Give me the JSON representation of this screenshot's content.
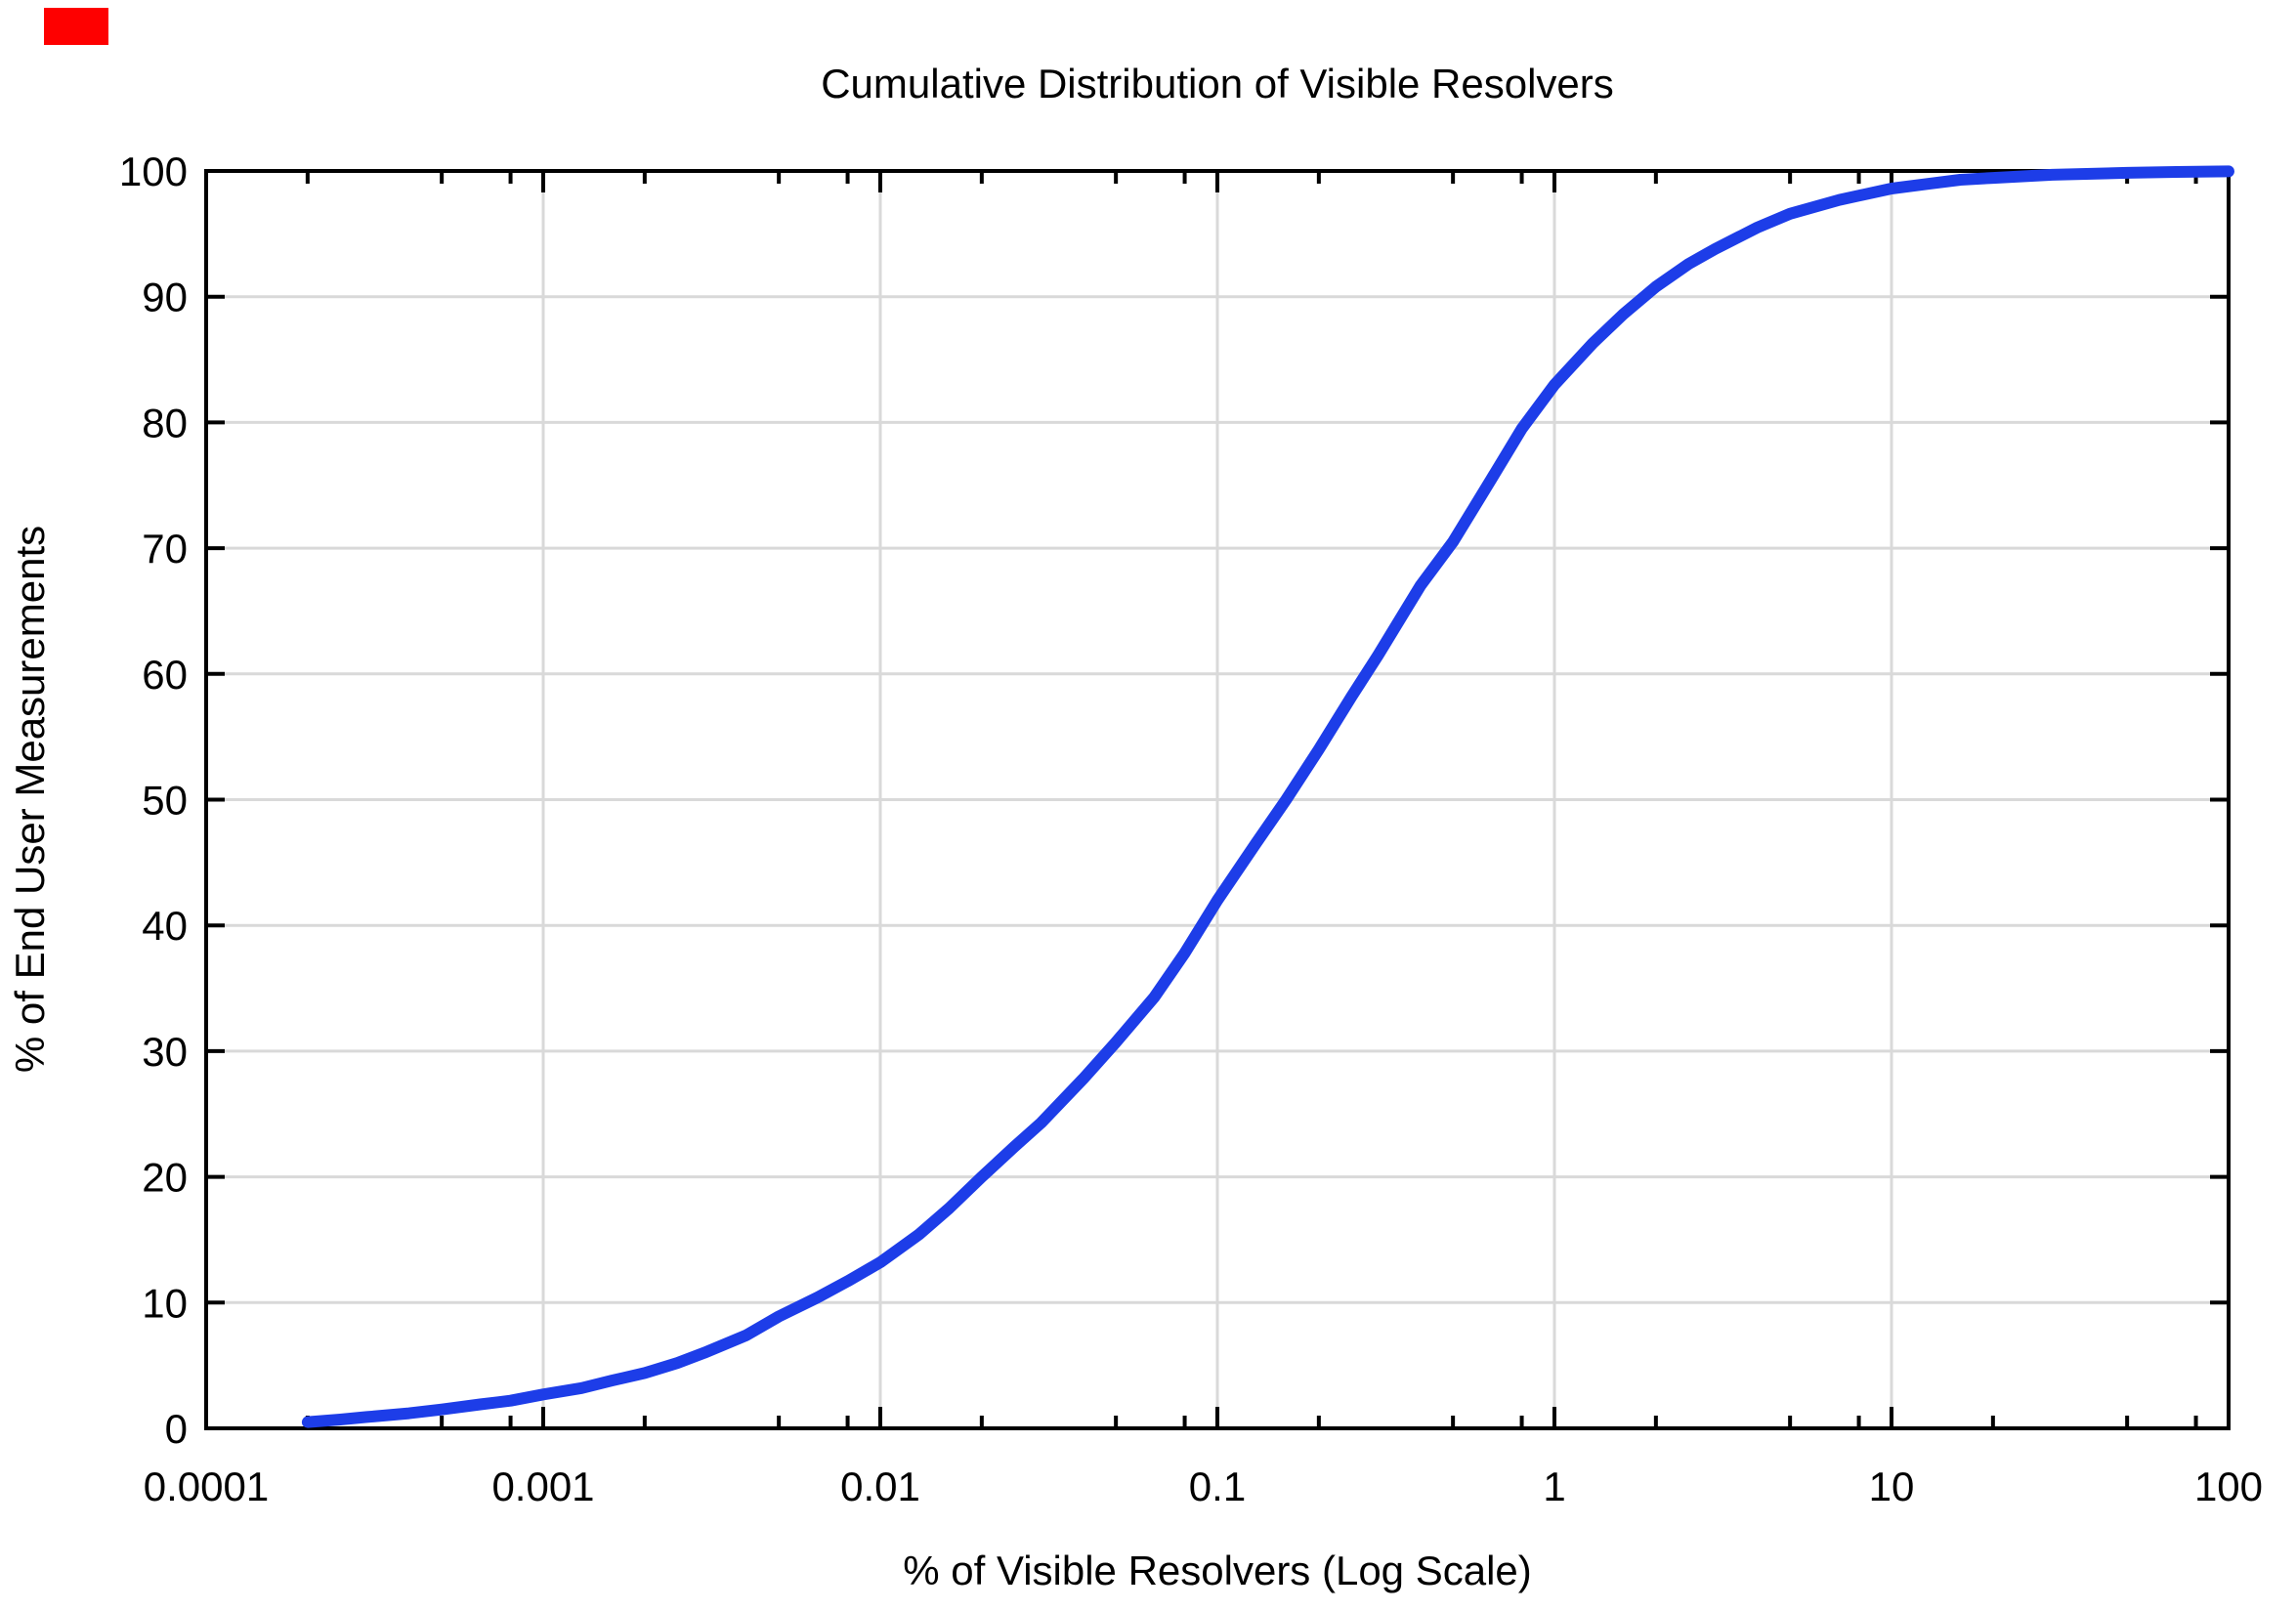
{
  "figure": {
    "background": "#ffffff",
    "red_marker_color": "#fe0000"
  },
  "chart_data": {
    "type": "line",
    "title": "Cumulative Distribution of Visible Resolvers",
    "xlabel": "% of Visible Resolvers (Log Scale)",
    "ylabel": "% of End User Measurements",
    "x_scale": "log",
    "x_range": [
      0.0001,
      100
    ],
    "y_range": [
      0,
      100
    ],
    "x_tick_labels": [
      "0.0001",
      "0.001",
      "0.01",
      "0.1",
      "1",
      "10",
      "100"
    ],
    "x_tick_values": [
      0.0001,
      0.001,
      0.01,
      0.1,
      1,
      10,
      100
    ],
    "x_minor_tick_mantissas": [
      2,
      5,
      8
    ],
    "y_tick_values": [
      0,
      10,
      20,
      30,
      40,
      50,
      60,
      70,
      80,
      90,
      100
    ],
    "grid": true,
    "grid_color": "#d9d9d9",
    "axis_color": "#000000",
    "legend": "none",
    "series": [
      {
        "name": "Cumulative distribution of visible resolvers",
        "color": "#1d3de8",
        "line_width": 12,
        "points": [
          [
            0.0002,
            0.5
          ],
          [
            0.00025,
            0.7
          ],
          [
            0.0003,
            0.9
          ],
          [
            0.0004,
            1.2
          ],
          [
            0.0005,
            1.5
          ],
          [
            0.00065,
            1.9
          ],
          [
            0.0008,
            2.2
          ],
          [
            0.001,
            2.7
          ],
          [
            0.0013,
            3.2
          ],
          [
            0.0016,
            3.8
          ],
          [
            0.002,
            4.4
          ],
          [
            0.0025,
            5.2
          ],
          [
            0.003,
            6.0
          ],
          [
            0.004,
            7.4
          ],
          [
            0.005,
            8.9
          ],
          [
            0.0065,
            10.4
          ],
          [
            0.008,
            11.7
          ],
          [
            0.01,
            13.2
          ],
          [
            0.013,
            15.4
          ],
          [
            0.016,
            17.5
          ],
          [
            0.02,
            20.0
          ],
          [
            0.025,
            22.4
          ],
          [
            0.03,
            24.3
          ],
          [
            0.04,
            27.8
          ],
          [
            0.05,
            30.7
          ],
          [
            0.065,
            34.3
          ],
          [
            0.08,
            37.8
          ],
          [
            0.1,
            42.0
          ],
          [
            0.13,
            46.5
          ],
          [
            0.16,
            50.0
          ],
          [
            0.2,
            54.0
          ],
          [
            0.25,
            58.2
          ],
          [
            0.3,
            61.5
          ],
          [
            0.4,
            67.0
          ],
          [
            0.5,
            70.5
          ],
          [
            0.65,
            75.5
          ],
          [
            0.8,
            79.5
          ],
          [
            1.0,
            83.0
          ],
          [
            1.3,
            86.3
          ],
          [
            1.6,
            88.6
          ],
          [
            2.0,
            90.8
          ],
          [
            2.5,
            92.6
          ],
          [
            3.0,
            93.8
          ],
          [
            4.0,
            95.5
          ],
          [
            5.0,
            96.6
          ],
          [
            7.0,
            97.7
          ],
          [
            10.0,
            98.6
          ],
          [
            13.0,
            99.0
          ],
          [
            16.0,
            99.3
          ],
          [
            20.0,
            99.45
          ],
          [
            30.0,
            99.7
          ],
          [
            50.0,
            99.85
          ],
          [
            70.0,
            99.92
          ],
          [
            100.0,
            99.97
          ]
        ]
      }
    ]
  }
}
